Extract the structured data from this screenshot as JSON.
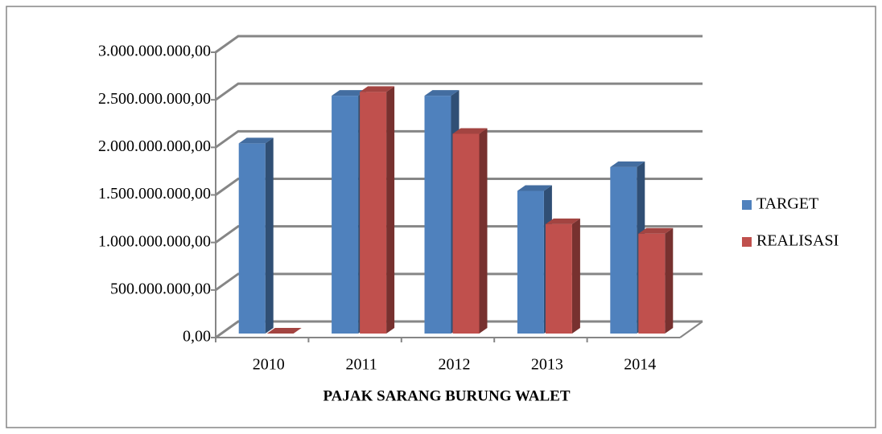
{
  "chart_data": {
    "type": "bar3d",
    "x_label": "PAJAK SARANG BURUNG WALET",
    "categories": [
      "2010",
      "2011",
      "2012",
      "2013",
      "2014"
    ],
    "series": [
      {
        "name": "TARGET",
        "color": "#4f81bd",
        "values": [
          2000000000,
          2500000000,
          2500000000,
          1500000000,
          1750000000
        ]
      },
      {
        "name": "REALISASI",
        "color": "#c0504d",
        "values": [
          0,
          2540000000,
          2100000000,
          1150000000,
          1050000000
        ]
      }
    ],
    "ylim": [
      0,
      3000000000
    ],
    "yticks": [
      {
        "value": 0,
        "label": "0,00"
      },
      {
        "value": 500000000,
        "label": "500.000.000,00"
      },
      {
        "value": 1000000000,
        "label": "1.000.000.000,00"
      },
      {
        "value": 1500000000,
        "label": "1.500.000.000,00"
      },
      {
        "value": 2000000000,
        "label": "2.000.000.000,00"
      },
      {
        "value": 2500000000,
        "label": "2.500.000.000,00"
      },
      {
        "value": 3000000000,
        "label": "3.000.000.000,00"
      }
    ],
    "grid": true,
    "legend": "right"
  }
}
